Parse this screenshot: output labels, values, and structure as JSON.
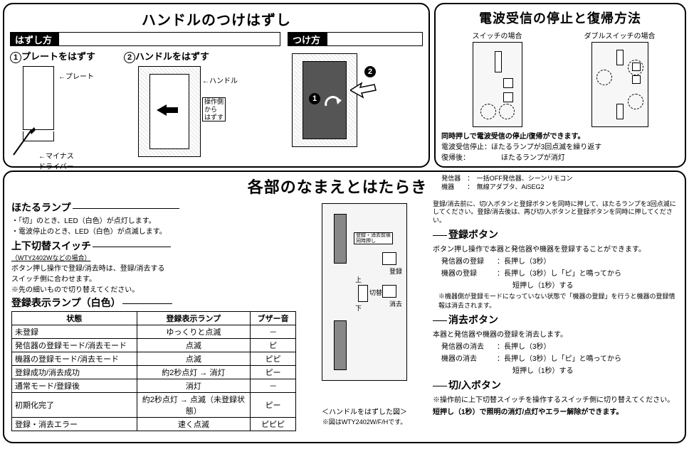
{
  "top_left": {
    "title": "ハンドルのつけはずし",
    "remove_heading": "はずし方",
    "attach_heading": "つけ方",
    "step1": "プレートをはずす",
    "step2": "ハンドルをはずす",
    "label_plate": "プレート",
    "label_driver": "マイナス\nドライバー",
    "label_handle": "ハンドル",
    "label_op_side": "操作側\nから\nはずす"
  },
  "top_right": {
    "title": "電波受信の停止と復帰方法",
    "case_switch": "スイッチの場合",
    "case_double": "ダブルスイッチの場合",
    "line1": "同時押しで電波受信の停止/復帰ができます。",
    "line2a": "電波受信停止：",
    "line2b": "ほたるランプが3回点滅を繰り返す",
    "line3a": "復帰後：",
    "line3b": "ほたるランプが消灯"
  },
  "main": {
    "title": "各部のなまえとはたらき",
    "legend_tx": "発信器　：　一括OFF発信器、シーンリモコン",
    "legend_dev": "機器　　：　無線アダプタ、AiSEG2",
    "hotaru_title": "ほたるランプ",
    "hotaru_l1": "・「切」のとき、LED（白色）が点灯します。",
    "hotaru_l2": "・電波停止のとき、LED（白色）が点滅します。",
    "updown_title": "上下切替スイッチ",
    "updown_note": "（WTY2402Wなどの場合）",
    "updown_l1": "ボタン押し操作で登録/消去時は、登録/消去する",
    "updown_l2": "スイッチ側に合わせます。",
    "updown_l3": "※先の細いもので切り替えてください。",
    "reglamp_title": "登録表示ランプ（白色）",
    "pre_note": "登録/消去前に、切/入ボタンと登録ボタンを同時に押して、ほたるランプを3回点滅にしてください。登録/消去後は、再び切/入ボタンと登録ボタンを同時に押してください。",
    "reg_title": "登録ボタン",
    "reg_l1": "ボタン押し操作で本器と発信器や機器を登録することができます。",
    "reg_l2a": "発信器の登録",
    "reg_l2b": "：長押し（3秒）",
    "reg_l3a": "機器の登録",
    "reg_l3b": "：長押し（3秒）し「ピ」と鳴ってから",
    "reg_l3c": "　短押し（1秒）する",
    "reg_l4": "※機器側が登録モードになっていない状態で「機器の登録」を行うと機器の登録情報は消去されます。",
    "del_title": "消去ボタン",
    "del_l1": "本器と発信器や機器の登録を消去します。",
    "del_l2a": "発信器の消去",
    "del_l2b": "：長押し（3秒）",
    "del_l3a": "機器の消去",
    "del_l3b": "：長押し（3秒）し「ピ」と鳴ってから",
    "del_l3c": "　短押し（1秒）する",
    "onoff_title": "切/入ボタン",
    "onoff_l1": "※操作前に上下切替スイッチを操作するスイッチ側に切り替えてください。",
    "onoff_l2": "短押し（1秒）で照明の消灯/点灯やエラー解除ができます。",
    "diagram_caption": "＜ハンドルをはずした図＞",
    "diagram_note": "※図はWTY2402W/F/Hです。",
    "diag_label_reg": "登録",
    "diag_label_del": "消去",
    "diag_label_sw": "切替",
    "diag_label_up": "上",
    "diag_label_down": "下",
    "diag_label_mode": "登録・消去前後\n同時押し"
  },
  "table": {
    "h1": "状態",
    "h2": "登録表示ランプ",
    "h3": "ブザー音",
    "rows": [
      [
        "未登録",
        "ゆっくりと点滅",
        "－"
      ],
      [
        "発信器の登録モード/消去モード",
        "点滅",
        "ピ"
      ],
      [
        "機器の登録モード/消去モード",
        "点滅",
        "ピピ"
      ],
      [
        "登録成功/消去成功",
        "約2秒点灯 → 消灯",
        "ピー"
      ],
      [
        "通常モード/登録後",
        "消灯",
        "－"
      ],
      [
        "初期化完了",
        "約2秒点灯 → 点滅（未登録状態）",
        "ピー"
      ],
      [
        "登録・消去エラー",
        "速く点滅",
        "ピピピ"
      ]
    ]
  }
}
